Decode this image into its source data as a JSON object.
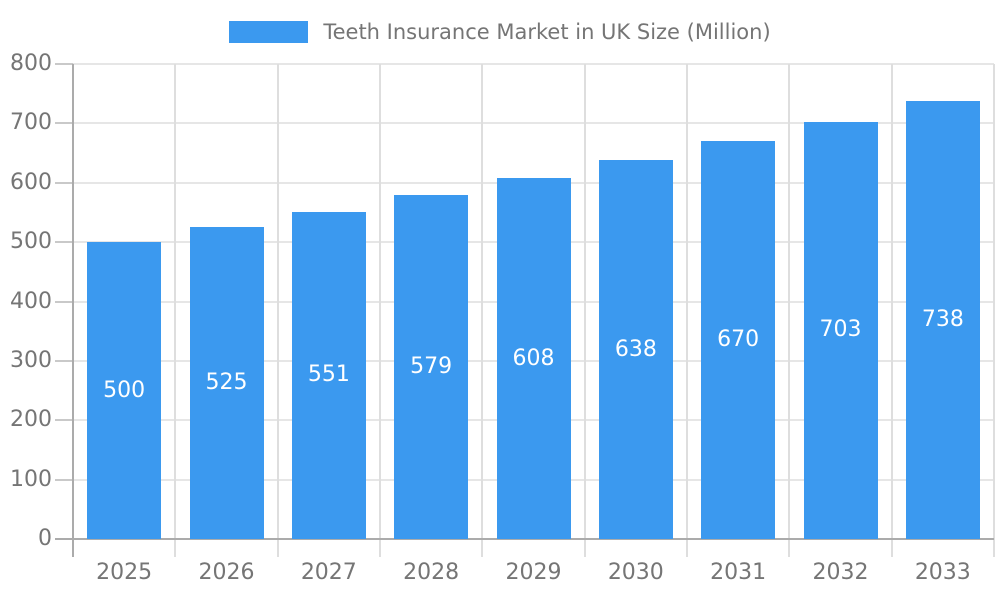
{
  "chart_data": {
    "type": "bar",
    "title": "Teeth Insurance Market in UK Size (Million)",
    "legend_position": "top",
    "categories": [
      "2025",
      "2026",
      "2027",
      "2028",
      "2029",
      "2030",
      "2031",
      "2032",
      "2033"
    ],
    "series": [
      {
        "name": "Teeth Insurance Market in UK Size (Million)",
        "values": [
          500,
          525,
          551,
          579,
          608,
          638,
          670,
          703,
          738
        ]
      }
    ],
    "xlabel": "",
    "ylabel": "",
    "ylim": [
      0,
      800
    ],
    "ytick_step": 100,
    "ytick_labels": [
      "0",
      "100",
      "200",
      "300",
      "400",
      "500",
      "600",
      "700",
      "800"
    ],
    "grid": true,
    "bar_label_position": "inside-center"
  },
  "colors": {
    "bar": "#3B99EF",
    "bar_label_text": "#FFFFFF",
    "text": "#757575",
    "grid_h": "#E6E6E6",
    "grid_v": "#DEDEDE",
    "tick": "#C9C9C9",
    "axis_line": "#ABABAB",
    "background": "#FFFFFF"
  }
}
